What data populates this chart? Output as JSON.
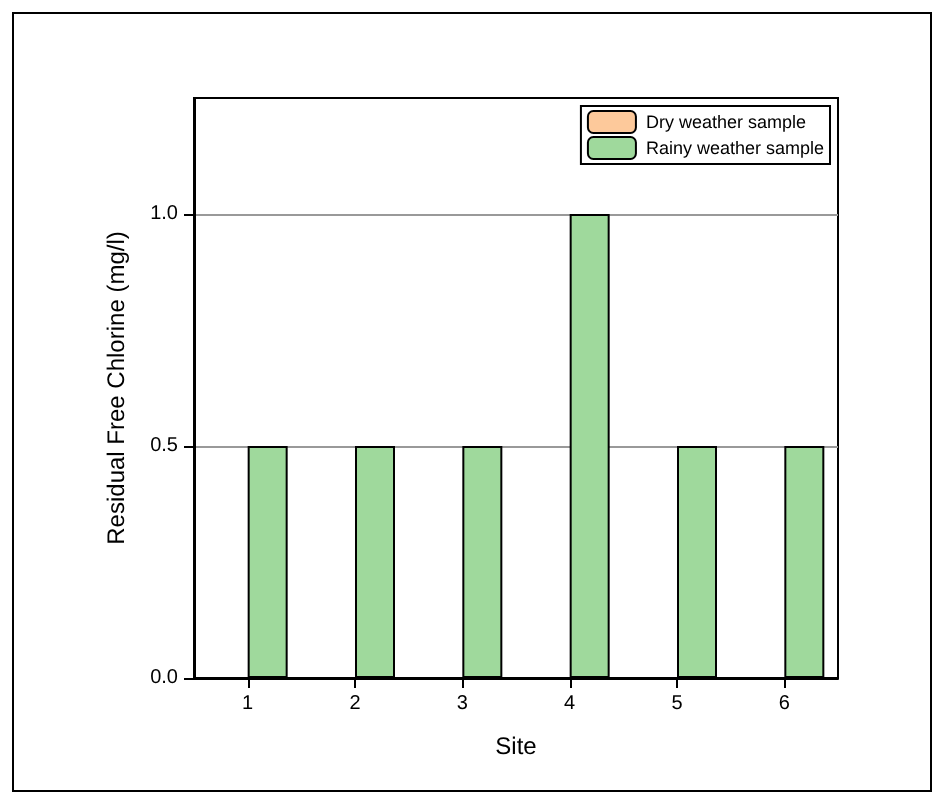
{
  "chart_data": {
    "type": "bar",
    "xlabel": "Site",
    "ylabel": "Residual Free Chlorine (mg/l)",
    "categories": [
      "1",
      "2",
      "3",
      "4",
      "5",
      "6"
    ],
    "series": [
      {
        "name": "Dry weather sample",
        "color": "#fdc99b",
        "values": [
          0,
          0,
          0,
          0,
          0,
          0
        ]
      },
      {
        "name": "Rainy weather sample",
        "color": "#9fd99c",
        "values": [
          0.5,
          0.5,
          0.5,
          1.0,
          0.5,
          0.5
        ]
      }
    ],
    "ylim": [
      0,
      1.25
    ],
    "yticks": [
      {
        "value": 0,
        "label": "0.0"
      },
      {
        "value": 0.5,
        "label": "0.5"
      },
      {
        "value": 1,
        "label": "1.0"
      }
    ],
    "grid": "y",
    "legend": "top right"
  }
}
